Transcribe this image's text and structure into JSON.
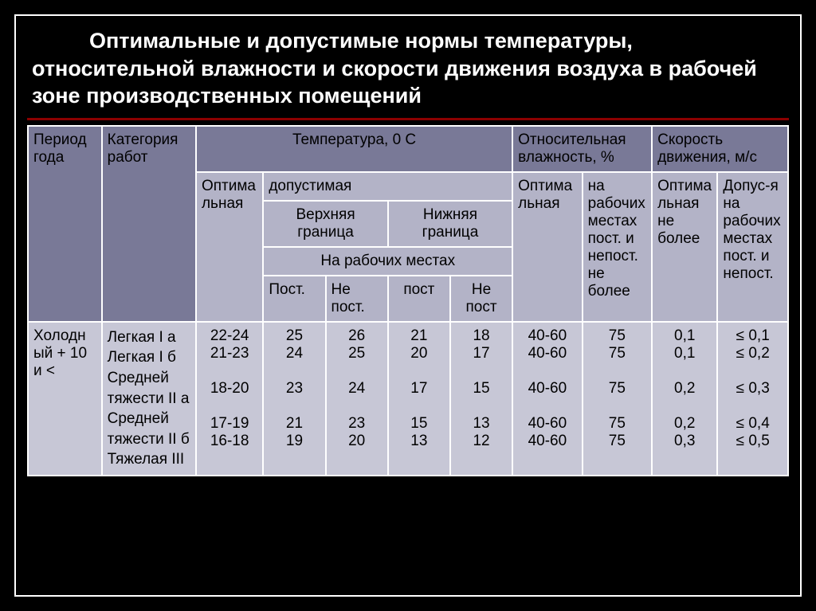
{
  "title": "Оптимальные и допустимые нормы температуры, относительной влажности и скорости движения воздуха   в рабочей зоне производственных помещений",
  "colors": {
    "page_bg": "#000000",
    "frame_border": "#ffffff",
    "title_underline": "#8b0000",
    "title_text": "#ffffff",
    "header1_bg": "#797997",
    "header2_bg": "#b3b3c7",
    "data_bg": "#c7c7d6",
    "cell_border": "#ffffff",
    "cell_text": "#000000"
  },
  "typography": {
    "title_fontsize": 27,
    "cell_fontsize": 19,
    "font_family": "Arial"
  },
  "columns": {
    "period": "Период года",
    "category": "Категория работ",
    "temp": "Температура, 0 С",
    "temp_opt": "Оптимальная",
    "temp_allow": "допустимая",
    "temp_upper": "Верхняя граница",
    "temp_lower": "Нижняя граница",
    "temp_places": "На рабочих местах",
    "post": "Пост.",
    "nepost": "Не пост.",
    "post2": "пост",
    "nepost2": "Не пост",
    "humidity": "Относительная влажность, %",
    "hum_opt": "Оптимальная",
    "hum_allow": "на рабочих местах пост. и непост. не более",
    "speed": "Скорость движения, м/с",
    "speed_opt": "Оптимальная не более",
    "speed_allow": "Допус-я на рабочих местах пост. и непост."
  },
  "rows": [
    {
      "period": "Холодный + 10 и <",
      "categories": [
        "Легкая I а",
        "Легкая I б",
        "Средней",
        " тяжести II а",
        "Средней",
        " тяжести II б",
        "Тяжелая III"
      ],
      "temp_opt": [
        "22-24",
        "21-23",
        "",
        "18-20",
        "",
        "17-19",
        "16-18"
      ],
      "upper_post": [
        "25",
        "24",
        "",
        "23",
        "",
        "21",
        "19"
      ],
      "upper_nepost": [
        "26",
        "25",
        "",
        "24",
        "",
        "23",
        "20"
      ],
      "lower_post": [
        "21",
        "20",
        "",
        "17",
        "",
        "15",
        "13"
      ],
      "lower_nepost": [
        "18",
        "17",
        "",
        "15",
        "",
        "13",
        "12"
      ],
      "hum_opt": [
        "40-60",
        "40-60",
        "",
        "40-60",
        "",
        "40-60",
        "40-60"
      ],
      "hum_allow": [
        "75",
        "75",
        "",
        "75",
        "",
        "75",
        "75"
      ],
      "speed_opt": [
        "0,1",
        "0,1",
        "",
        "0,2",
        "",
        "0,2",
        "0,3"
      ],
      "speed_allow": [
        "≤ 0,1",
        "≤  0,2",
        "",
        "≤  0,3",
        "",
        "≤  0,4",
        "≤  0,5"
      ]
    }
  ]
}
